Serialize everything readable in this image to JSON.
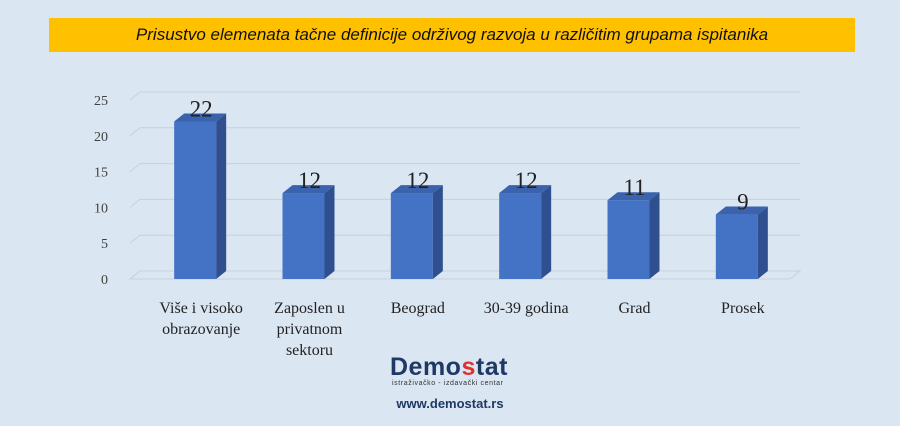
{
  "chart_data": {
    "type": "bar",
    "title": "Prisustvo elemenata tačne definicije održivog razvoja u različitim grupama ispitanika",
    "categories": [
      [
        "Više i visoko",
        "obrazovanje"
      ],
      [
        "Zaposlen u",
        "privatnom",
        "sektoru"
      ],
      [
        "Beograd"
      ],
      [
        "30-39 godina"
      ],
      [
        "Grad"
      ],
      [
        "Prosek"
      ]
    ],
    "values": [
      22,
      12,
      12,
      12,
      11,
      9
    ],
    "ylim": [
      0,
      25
    ],
    "yticks": [
      0,
      5,
      10,
      15,
      20,
      25
    ],
    "grid": true,
    "bar_color": "#4472c4",
    "bar_side_color": "#2f4f8f",
    "bar_top_color": "#3a62ad"
  },
  "logo": {
    "word_start": "Demo",
    "word_s": "s",
    "word_end": "tat",
    "tagline": "istraživačko - izdavački  centar"
  },
  "website": "www.demostat.rs"
}
